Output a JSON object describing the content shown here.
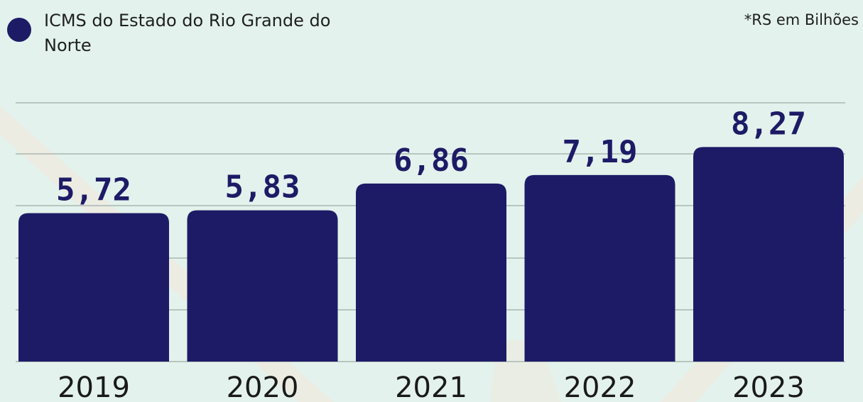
{
  "legend": {
    "label": "ICMS do Estado do Rio Grande do Norte"
  },
  "unit_note": "*RS em Bilhões",
  "colors": {
    "background": "#e3f2ec",
    "bar": "#1d1b66",
    "value_label": "#1d1b66",
    "grid": "#a9b7b2"
  },
  "chart_data": {
    "type": "bar",
    "categories": [
      "2019",
      "2020",
      "2021",
      "2022",
      "2023"
    ],
    "series": [
      {
        "name": "ICMS do Estado do Rio Grande do Norte",
        "values": [
          5.72,
          5.83,
          6.86,
          7.19,
          8.27
        ],
        "value_labels": [
          "5,72",
          "5,83",
          "6,86",
          "7,19",
          "8,27"
        ]
      }
    ],
    "grid": true,
    "legend_position": "top-left"
  }
}
